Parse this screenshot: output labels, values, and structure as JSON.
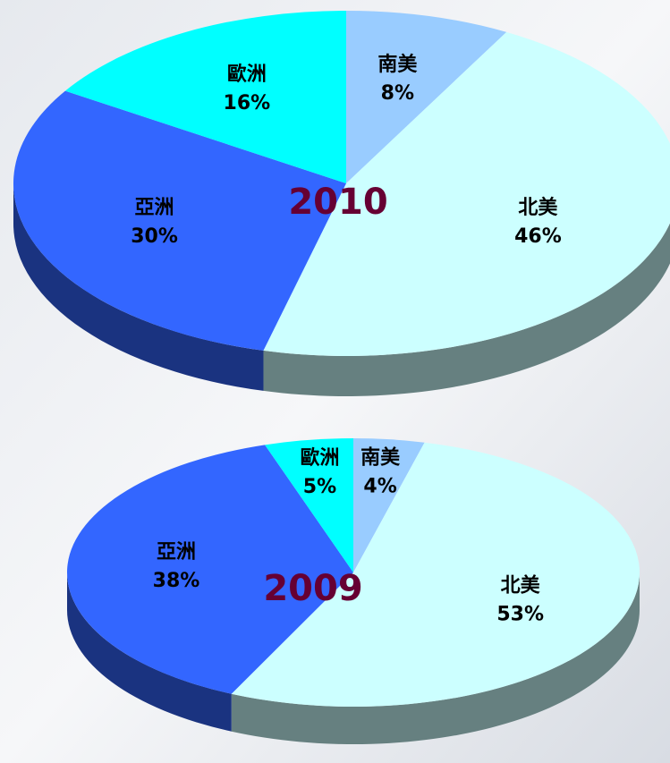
{
  "chart_data": [
    {
      "type": "pie",
      "title": "2010",
      "categories": [
        "南美",
        "北美",
        "亞洲",
        "歐洲"
      ],
      "values": [
        8,
        46,
        30,
        16
      ],
      "value_labels": [
        "8%",
        "46%",
        "30%",
        "16%"
      ],
      "colors": [
        "#99ccff",
        "#ccffff",
        "#3366ff",
        "#00ffff"
      ]
    },
    {
      "type": "pie",
      "title": "2009",
      "categories": [
        "南美",
        "北美",
        "亞洲",
        "歐洲"
      ],
      "values": [
        4,
        53,
        38,
        5
      ],
      "value_labels": [
        "4%",
        "53%",
        "38%",
        "5%"
      ],
      "colors": [
        "#99ccff",
        "#ccffff",
        "#3366ff",
        "#00ffff"
      ]
    }
  ]
}
